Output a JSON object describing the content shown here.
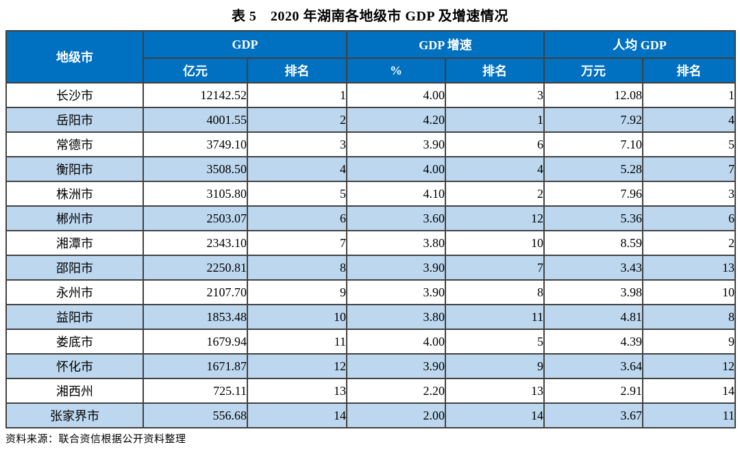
{
  "title": "表 5　2020 年湖南各地级市 GDP 及增速情况",
  "source_note": "资料来源：联合资信根据公开资料整理",
  "colors": {
    "header_bg": "#0070C0",
    "header_text": "#FFFFFF",
    "row_alt_bg": "#BDD7EE",
    "border": "#404040"
  },
  "table": {
    "group_headers": {
      "city": "地级市",
      "gdp": "GDP",
      "gdp_growth": "GDP 增速",
      "gdp_per_capita": "人均 GDP"
    },
    "sub_headers": {
      "gdp_value_unit": "亿元",
      "gdp_rank": "排名",
      "growth_value_unit": "%",
      "growth_rank": "排名",
      "per_capita_unit": "万元",
      "per_capita_rank": "排名"
    },
    "rows": [
      {
        "city": "长沙市",
        "gdp": "12142.52",
        "gdp_rank": "1",
        "growth": "4.00",
        "growth_rank": "3",
        "pc": "12.08",
        "pc_rank": "1"
      },
      {
        "city": "岳阳市",
        "gdp": "4001.55",
        "gdp_rank": "2",
        "growth": "4.20",
        "growth_rank": "1",
        "pc": "7.92",
        "pc_rank": "4"
      },
      {
        "city": "常德市",
        "gdp": "3749.10",
        "gdp_rank": "3",
        "growth": "3.90",
        "growth_rank": "6",
        "pc": "7.10",
        "pc_rank": "5"
      },
      {
        "city": "衡阳市",
        "gdp": "3508.50",
        "gdp_rank": "4",
        "growth": "4.00",
        "growth_rank": "4",
        "pc": "5.28",
        "pc_rank": "7"
      },
      {
        "city": "株洲市",
        "gdp": "3105.80",
        "gdp_rank": "5",
        "growth": "4.10",
        "growth_rank": "2",
        "pc": "7.96",
        "pc_rank": "3"
      },
      {
        "city": "郴州市",
        "gdp": "2503.07",
        "gdp_rank": "6",
        "growth": "3.60",
        "growth_rank": "12",
        "pc": "5.36",
        "pc_rank": "6"
      },
      {
        "city": "湘潭市",
        "gdp": "2343.10",
        "gdp_rank": "7",
        "growth": "3.80",
        "growth_rank": "10",
        "pc": "8.59",
        "pc_rank": "2"
      },
      {
        "city": "邵阳市",
        "gdp": "2250.81",
        "gdp_rank": "8",
        "growth": "3.90",
        "growth_rank": "7",
        "pc": "3.43",
        "pc_rank": "13"
      },
      {
        "city": "永州市",
        "gdp": "2107.70",
        "gdp_rank": "9",
        "growth": "3.90",
        "growth_rank": "8",
        "pc": "3.98",
        "pc_rank": "10"
      },
      {
        "city": "益阳市",
        "gdp": "1853.48",
        "gdp_rank": "10",
        "growth": "3.80",
        "growth_rank": "11",
        "pc": "4.81",
        "pc_rank": "8"
      },
      {
        "city": "娄底市",
        "gdp": "1679.94",
        "gdp_rank": "11",
        "growth": "4.00",
        "growth_rank": "5",
        "pc": "4.39",
        "pc_rank": "9"
      },
      {
        "city": "怀化市",
        "gdp": "1671.87",
        "gdp_rank": "12",
        "growth": "3.90",
        "growth_rank": "9",
        "pc": "3.64",
        "pc_rank": "12"
      },
      {
        "city": "湘西州",
        "gdp": "725.11",
        "gdp_rank": "13",
        "growth": "2.20",
        "growth_rank": "13",
        "pc": "2.91",
        "pc_rank": "14"
      },
      {
        "city": "张家界市",
        "gdp": "556.68",
        "gdp_rank": "14",
        "growth": "2.00",
        "growth_rank": "14",
        "pc": "3.67",
        "pc_rank": "11"
      }
    ]
  }
}
